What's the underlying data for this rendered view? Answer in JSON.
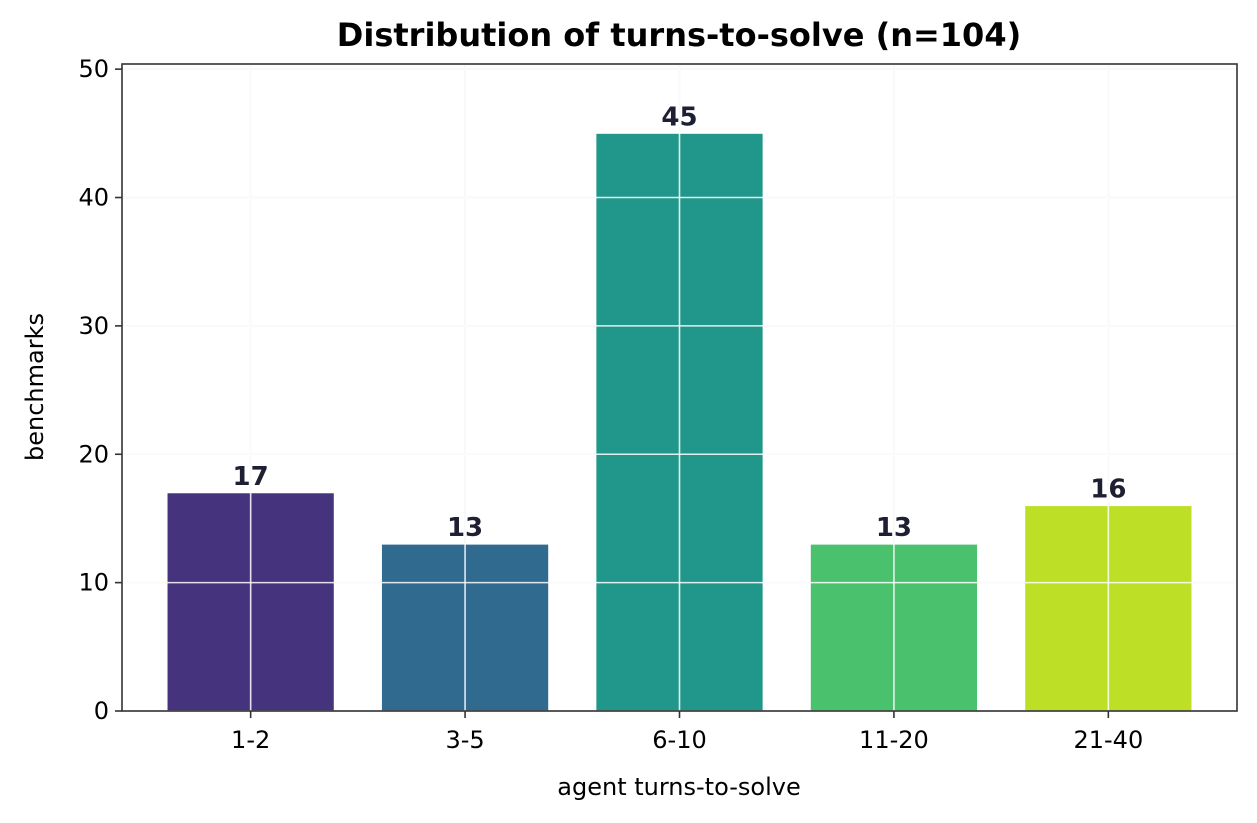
{
  "chart_data": {
    "type": "bar",
    "title": "Distribution of turns-to-solve (n=104)",
    "xlabel": "agent turns-to-solve",
    "ylabel": "benchmarks",
    "categories": [
      "1-2",
      "3-5",
      "6-10",
      "11-20",
      "21-40"
    ],
    "values": [
      17,
      13,
      45,
      13,
      16
    ],
    "data_labels": [
      "17",
      "13",
      "45",
      "13",
      "16"
    ],
    "colors": [
      "#46337e",
      "#306a8e",
      "#21978b",
      "#4ac16d",
      "#bddf26"
    ],
    "ylim": [
      0,
      50.4
    ],
    "yticks": [
      0,
      10,
      20,
      30,
      40,
      50
    ],
    "ytick_labels": [
      "0",
      "10",
      "20",
      "30",
      "40",
      "50"
    ],
    "grid": true,
    "legend": null
  }
}
